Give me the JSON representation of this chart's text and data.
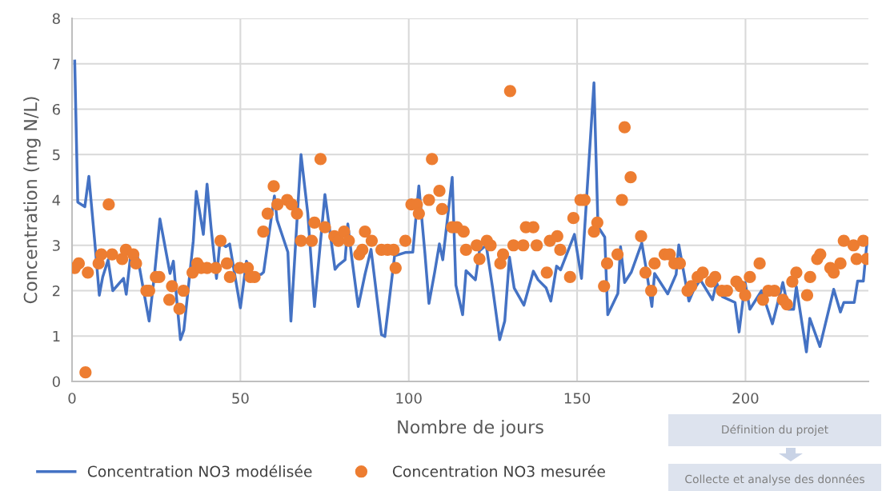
{
  "chart_data": {
    "type": "line",
    "xlabel": "Nombre de jours",
    "ylabel": "Concentration (mg N/L)",
    "xlim": [
      0,
      236.5
    ],
    "xticks": [
      0,
      50,
      100,
      150,
      200
    ],
    "ylim": [
      0,
      8
    ],
    "yticks": [
      0,
      1,
      2,
      3,
      4,
      5,
      6,
      7,
      8
    ],
    "grid": true,
    "legend": "bottom",
    "series": [
      {
        "name": "Concentration NO3 modélisée",
        "color": "#4472c4",
        "marker": "none",
        "x": [
          0.8,
          1.7,
          3.8,
          5.0,
          6.7,
          8.1,
          9.1,
          10.7,
          12.1,
          15.3,
          16.1,
          17.4,
          19.4,
          21.4,
          22.9,
          24.5,
          26.1,
          29.1,
          30.1,
          31.2,
          32.2,
          33.2,
          36.0,
          36.9,
          39.0,
          40.1,
          41.3,
          42.9,
          43.9,
          45.7,
          46.8,
          48.2,
          50.0,
          51.8,
          53.8,
          56.2,
          56.9,
          60.1,
          60.9,
          64.1,
          65.0,
          68.0,
          70.0,
          72.0,
          75.1,
          78.1,
          79.1,
          81.1,
          81.9,
          83.0,
          85.0,
          87.0,
          88.8,
          91.9,
          92.9,
          95.8,
          98.9,
          101.2,
          103.0,
          104.8,
          106.0,
          107.7,
          109.1,
          110.1,
          112.9,
          114.0,
          116.0,
          117.0,
          119.8,
          121.0,
          123.0,
          124.9,
          127.0,
          128.5,
          129.9,
          131.3,
          134.2,
          137.0,
          138.4,
          140.8,
          142.2,
          143.9,
          145.1,
          149.2,
          151.3,
          155.0,
          156.2,
          158.2,
          159.1,
          162.1,
          162.9,
          164.1,
          166.1,
          169.2,
          170.4,
          172.2,
          173.0,
          176.9,
          179.4,
          180.2,
          183.2,
          184.7,
          186.6,
          190.2,
          191.4,
          193.1,
          196.9,
          198.1,
          199.9,
          201.3,
          204.8,
          208.0,
          211.1,
          212.7,
          214.3,
          215.1,
          218.1,
          219.1,
          222.1,
          226.2,
          228.2,
          229.2,
          232.3,
          233.3,
          235.0,
          236.1
        ],
        "values": [
          7.06,
          3.95,
          3.85,
          4.52,
          3.12,
          1.9,
          2.3,
          2.68,
          2.0,
          2.27,
          1.92,
          2.77,
          2.77,
          1.94,
          1.33,
          2.36,
          3.58,
          2.38,
          2.65,
          1.71,
          0.92,
          1.13,
          3.09,
          4.19,
          3.24,
          4.35,
          3.38,
          2.27,
          3.06,
          2.97,
          3.03,
          2.41,
          1.62,
          2.65,
          2.33,
          2.36,
          2.41,
          4.09,
          3.56,
          2.85,
          1.33,
          5.0,
          3.71,
          1.65,
          4.12,
          2.47,
          2.56,
          2.68,
          3.47,
          2.77,
          1.65,
          2.36,
          2.91,
          1.03,
          0.99,
          2.77,
          2.84,
          2.85,
          4.31,
          2.82,
          1.72,
          2.41,
          3.03,
          2.68,
          4.5,
          2.12,
          1.47,
          2.44,
          2.24,
          2.88,
          3.0,
          2.06,
          0.92,
          1.33,
          2.74,
          2.06,
          1.68,
          2.43,
          2.24,
          2.06,
          1.77,
          2.54,
          2.46,
          3.24,
          2.27,
          6.58,
          3.41,
          3.18,
          1.47,
          1.94,
          2.97,
          2.18,
          2.41,
          3.05,
          2.53,
          1.65,
          2.38,
          1.93,
          2.36,
          3.01,
          1.77,
          2.03,
          2.24,
          1.8,
          2.18,
          1.87,
          1.74,
          1.09,
          2.18,
          1.59,
          2.0,
          1.27,
          2.18,
          1.59,
          1.59,
          2.09,
          0.65,
          1.39,
          0.77,
          2.03,
          1.53,
          1.74,
          1.74,
          2.21,
          2.21,
          3.09
        ]
      },
      {
        "name": "Concentration NO3 mesurée",
        "type": "scatter",
        "color": "#ed7d31",
        "marker": "circle",
        "x": [
          0.8,
          2.0,
          4.0,
          4.7,
          7.9,
          8.7,
          10.9,
          11.9,
          14.9,
          16.0,
          18.2,
          19.0,
          22.1,
          22.9,
          24.9,
          25.9,
          28.9,
          29.7,
          31.9,
          33.1,
          35.8,
          37.2,
          38.4,
          40.1,
          42.7,
          44.1,
          46.0,
          46.9,
          49.8,
          52.2,
          53.0,
          54.2,
          56.8,
          58.1,
          59.9,
          61.0,
          63.9,
          65.2,
          66.8,
          68.0,
          71.2,
          72.0,
          73.8,
          75.1,
          77.9,
          79.1,
          80.8,
          82.2,
          85.3,
          86.2,
          87.0,
          89.0,
          91.9,
          93.7,
          95.5,
          96.1,
          99.0,
          100.8,
          102.4,
          103.0,
          106.0,
          106.9,
          109.1,
          109.9,
          112.9,
          114.3,
          116.3,
          117.0,
          120.2,
          121.0,
          123.2,
          124.3,
          127.2,
          128.0,
          130.1,
          131.1,
          134.0,
          134.8,
          137.0,
          138.0,
          141.0,
          141.9,
          144.1,
          145.0,
          147.9,
          148.9,
          151.0,
          152.2,
          155.0,
          156.0,
          158.0,
          158.9,
          162.0,
          163.3,
          164.1,
          165.9,
          169.0,
          170.3,
          172.0,
          173.0,
          176.0,
          177.5,
          178.9,
          180.5,
          182.8,
          183.9,
          185.8,
          187.3,
          189.8,
          191.0,
          193.0,
          194.5,
          197.3,
          198.5,
          199.9,
          201.3,
          204.2,
          205.2,
          206.8,
          208.6,
          211.1,
          212.3,
          213.9,
          215.1,
          218.3,
          219.2,
          221.3,
          222.2,
          225.2,
          226.2,
          228.2,
          229.2,
          232.1,
          233.0,
          235.0,
          236.0
        ],
        "values": [
          2.5,
          2.6,
          0.2,
          2.4,
          2.6,
          2.8,
          3.9,
          2.8,
          2.7,
          2.9,
          2.8,
          2.6,
          2.0,
          2.0,
          2.3,
          2.3,
          1.8,
          2.1,
          1.6,
          2.0,
          2.4,
          2.6,
          2.5,
          2.5,
          2.5,
          3.1,
          2.6,
          2.3,
          2.5,
          2.5,
          2.3,
          2.3,
          3.3,
          3.7,
          4.3,
          3.9,
          4.0,
          3.9,
          3.7,
          3.1,
          3.1,
          3.5,
          4.9,
          3.4,
          3.2,
          3.1,
          3.3,
          3.1,
          2.8,
          2.9,
          3.3,
          3.1,
          2.9,
          2.9,
          2.9,
          2.5,
          3.1,
          3.9,
          3.9,
          3.7,
          4.0,
          4.9,
          4.2,
          3.8,
          3.4,
          3.4,
          3.3,
          2.9,
          3.0,
          2.7,
          3.1,
          3.0,
          2.6,
          2.8,
          6.4,
          3.0,
          3.0,
          3.4,
          3.4,
          3.0,
          2.4,
          3.1,
          3.2,
          2.9,
          2.3,
          3.6,
          4.0,
          4.0,
          3.3,
          3.5,
          2.1,
          2.6,
          2.8,
          4.0,
          5.6,
          4.5,
          3.2,
          2.4,
          2.0,
          2.6,
          2.8,
          2.8,
          2.6,
          2.6,
          2.0,
          2.1,
          2.3,
          2.4,
          2.2,
          2.3,
          2.0,
          2.0,
          2.2,
          2.1,
          1.9,
          2.3,
          2.6,
          1.8,
          2.0,
          2.0,
          1.8,
          1.7,
          2.2,
          2.4,
          1.9,
          2.3,
          2.7,
          2.8,
          2.5,
          2.4,
          2.6,
          3.1,
          3.0,
          2.7,
          3.1,
          2.7
        ]
      }
    ],
    "annotations": [
      "Définition du projet",
      "Collecte et analyse des données"
    ]
  }
}
